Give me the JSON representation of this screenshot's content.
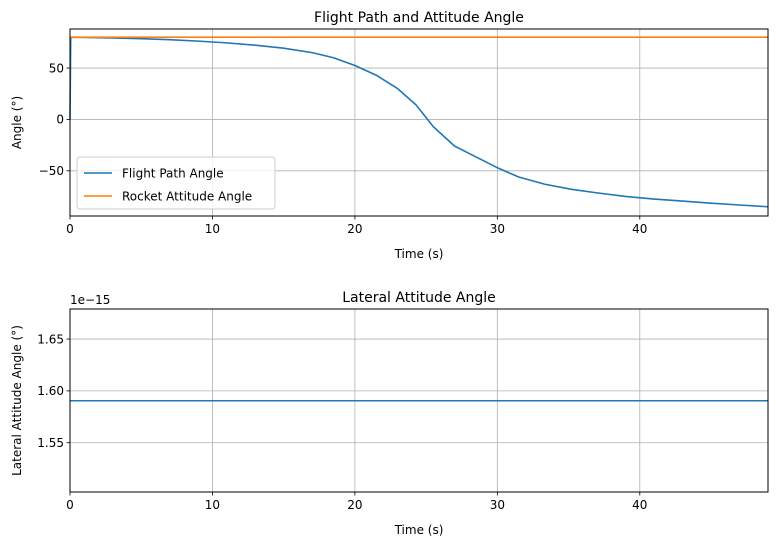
{
  "chart_data": [
    {
      "type": "line",
      "title": "Flight Path and Attitude Angle",
      "xlabel": "Time (s)",
      "ylabel": "Angle (°)",
      "xlim": [
        0,
        49
      ],
      "ylim": [
        -94,
        88
      ],
      "xticks": [
        0,
        10,
        20,
        30,
        40
      ],
      "yticks": [
        -50,
        0,
        50
      ],
      "grid": true,
      "legend_position": "lower-left",
      "series": [
        {
          "name": "Flight Path Angle",
          "color": "#1f77b4",
          "x": [
            0,
            0.05,
            1,
            3,
            5,
            7,
            9,
            11,
            13,
            15,
            17,
            18.5,
            20,
            21.5,
            23,
            24.3,
            25.5,
            27,
            28,
            30,
            31.5,
            33.3,
            35.2,
            37,
            39,
            41,
            43,
            45,
            47,
            49
          ],
          "y": [
            0,
            80,
            79.8,
            79.3,
            78.6,
            77.6,
            76.2,
            74.5,
            72.2,
            69.3,
            65,
            60,
            52.5,
            43,
            30,
            14,
            -7,
            -26,
            -33,
            -47,
            -56,
            -63,
            -68,
            -71.5,
            -75,
            -77.5,
            -79.5,
            -81.5,
            -83.3,
            -85
          ]
        },
        {
          "name": "Rocket Attitude Angle",
          "color": "#ff7f0e",
          "x": [
            0,
            49
          ],
          "y": [
            80,
            80
          ]
        }
      ]
    },
    {
      "type": "line",
      "title": "Lateral Attitude Angle",
      "xlabel": "Time (s)",
      "ylabel": "Lateral Attitude Angle (°)",
      "offset_text": "1e−15",
      "xlim": [
        0,
        49
      ],
      "ylim": [
        1.5025,
        1.679
      ],
      "xticks": [
        0,
        10,
        20,
        30,
        40
      ],
      "yticks": [
        1.55,
        1.6,
        1.65
      ],
      "ytick_labels": [
        "1.55",
        "1.60",
        "1.65"
      ],
      "grid": true,
      "series": [
        {
          "color": "#1f77b4",
          "x": [
            0,
            49
          ],
          "y": [
            1.5905,
            1.5905
          ]
        }
      ]
    }
  ]
}
